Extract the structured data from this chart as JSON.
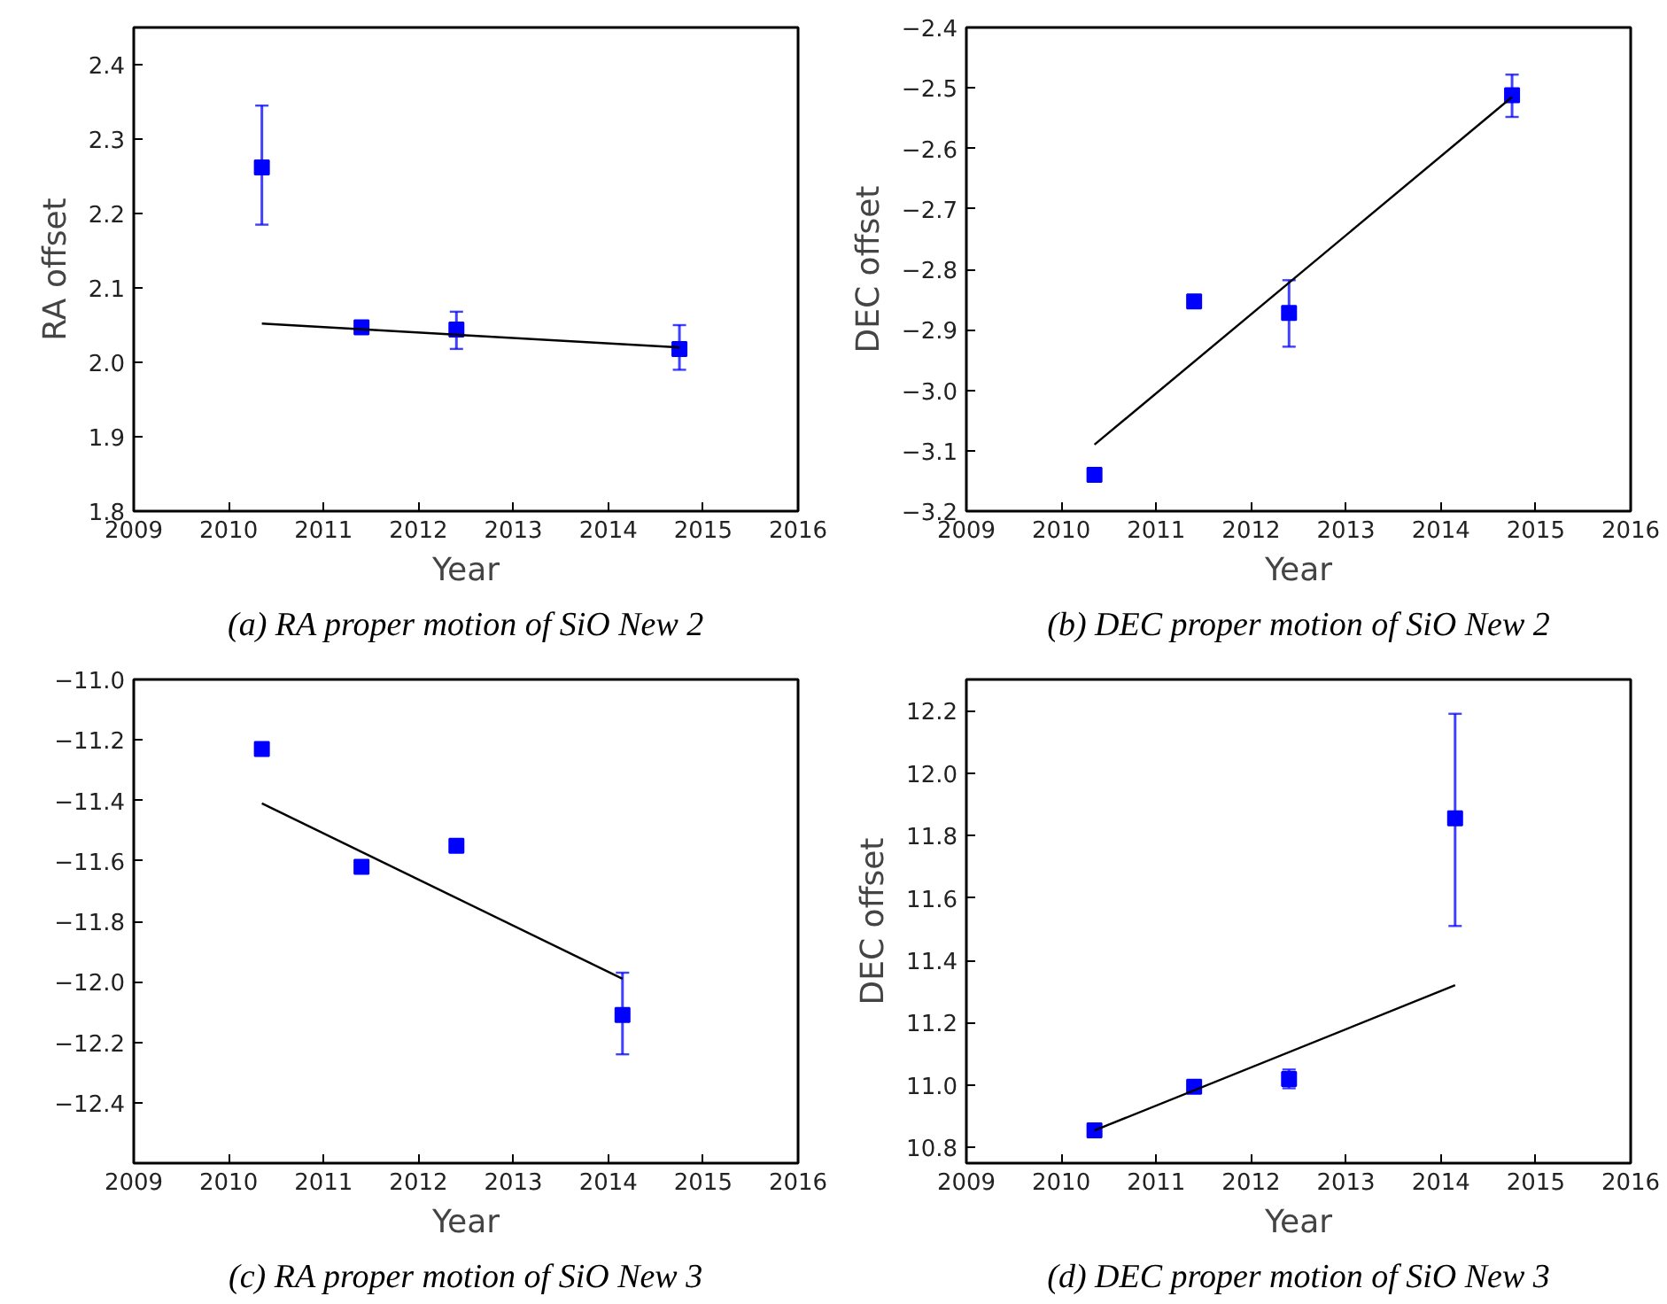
{
  "chart_data": [
    {
      "type": "scatter",
      "title": "(a) RA proper motion of SiO New 2",
      "xlabel": "Year",
      "ylabel": "RA offset",
      "grid": false,
      "marker": "square",
      "xlim": [
        2009,
        2016
      ],
      "xticks": [
        2009,
        2010,
        2011,
        2012,
        2013,
        2014,
        2015,
        2016
      ],
      "ylim": [
        1.8,
        2.45
      ],
      "yticks": [
        1.8,
        1.9,
        {
          "value": 2,
          "label": "2.0"
        },
        2.1,
        2.2,
        2.3,
        2.4
      ],
      "series": [
        {
          "color": "#0000ff",
          "x": [
            2010.35,
            2011.4,
            2012.4,
            2014.75
          ],
          "values": [
            2.262,
            2.047,
            2.044,
            2.018
          ],
          "errors": [
            [
              2.185,
              2.345
            ],
            null,
            [
              2.018,
              2.068
            ],
            [
              1.99,
              2.05
            ]
          ]
        },
        {
          "type": "line",
          "marker": "none",
          "color": "#000000",
          "x": [
            2010.35,
            2014.75
          ],
          "values": [
            2.052,
            2.02
          ]
        }
      ]
    },
    {
      "type": "scatter",
      "title": "(b) DEC proper motion of SiO New 2",
      "xlabel": "Year",
      "ylabel": "DEC offset",
      "grid": false,
      "marker": "square",
      "xlim": [
        2009,
        2016
      ],
      "xticks": [
        2009,
        2010,
        2011,
        2012,
        2013,
        2014,
        2015,
        2016
      ],
      "ylim": [
        -3.2,
        -2.4
      ],
      "yticks": [
        {
          "value": -3.2,
          "label": "−3.2"
        },
        {
          "value": -3.1,
          "label": "−3.1"
        },
        {
          "value": -3.0,
          "label": "−3.0"
        },
        {
          "value": -2.9,
          "label": "−2.9"
        },
        {
          "value": -2.8,
          "label": "−2.8"
        },
        {
          "value": -2.7,
          "label": "−2.7"
        },
        {
          "value": -2.6,
          "label": "−2.6"
        },
        {
          "value": -2.5,
          "label": "−2.5"
        },
        {
          "value": -2.4,
          "label": "−2.4"
        }
      ],
      "series": [
        {
          "color": "#0000ff",
          "x": [
            2010.35,
            2011.4,
            2012.4,
            2014.75
          ],
          "values": [
            -3.14,
            -2.853,
            -2.872,
            -2.512
          ],
          "errors": [
            null,
            null,
            [
              -2.928,
              -2.818
            ],
            [
              -2.548,
              -2.478
            ]
          ]
        },
        {
          "type": "line",
          "marker": "none",
          "color": "#000000",
          "x": [
            2010.35,
            2014.75
          ],
          "values": [
            -3.09,
            -2.515
          ]
        }
      ]
    },
    {
      "type": "scatter",
      "title": "(c) RA proper motion of SiO New 3",
      "xlabel": "Year",
      "grid": false,
      "marker": "square",
      "xlim": [
        2009,
        2016
      ],
      "xticks": [
        2009,
        2010,
        2011,
        2012,
        2013,
        2014,
        2015,
        2016
      ],
      "ylim": [
        -12.6,
        -11.0
      ],
      "yticks": [
        {
          "value": -12.4,
          "label": "−12.4"
        },
        {
          "value": -12.2,
          "label": "−12.2"
        },
        {
          "value": -12.0,
          "label": "−12.0"
        },
        {
          "value": -11.8,
          "label": "−11.8"
        },
        {
          "value": -11.6,
          "label": "−11.6"
        },
        {
          "value": -11.4,
          "label": "−11.4"
        },
        {
          "value": -11.2,
          "label": "−11.2"
        },
        {
          "value": -11.0,
          "label": "−11.0"
        }
      ],
      "series": [
        {
          "color": "#0000ff",
          "x": [
            2010.35,
            2011.4,
            2012.4,
            2014.15
          ],
          "values": [
            -11.23,
            -11.62,
            -11.55,
            -12.11
          ],
          "errors": [
            null,
            null,
            null,
            [
              -12.24,
              -11.97
            ]
          ]
        },
        {
          "type": "line",
          "marker": "none",
          "color": "#000000",
          "x": [
            2010.35,
            2014.15
          ],
          "values": [
            -11.41,
            -11.99
          ]
        }
      ]
    },
    {
      "type": "scatter",
      "title": "(d) DEC proper motion of SiO New 3",
      "xlabel": "Year",
      "ylabel": "DEC offset",
      "grid": false,
      "marker": "square",
      "xlim": [
        2009,
        2016
      ],
      "xticks": [
        2009,
        2010,
        2011,
        2012,
        2013,
        2014,
        2015,
        2016
      ],
      "ylim": [
        10.75,
        12.3
      ],
      "yticks": [
        10.8,
        {
          "value": 11,
          "label": "11.0"
        },
        11.2,
        11.4,
        11.6,
        11.8,
        {
          "value": 12,
          "label": "12.0"
        },
        12.2
      ],
      "series": [
        {
          "color": "#0000ff",
          "x": [
            2010.35,
            2011.4,
            2012.4,
            2014.15
          ],
          "values": [
            10.855,
            10.995,
            11.02,
            11.855
          ],
          "errors": [
            null,
            null,
            [
              10.99,
              11.05
            ],
            [
              11.51,
              12.19
            ]
          ]
        },
        {
          "type": "line",
          "marker": "none",
          "color": "#000000",
          "x": [
            2010.35,
            2014.15
          ],
          "values": [
            10.855,
            11.32
          ]
        }
      ]
    }
  ]
}
